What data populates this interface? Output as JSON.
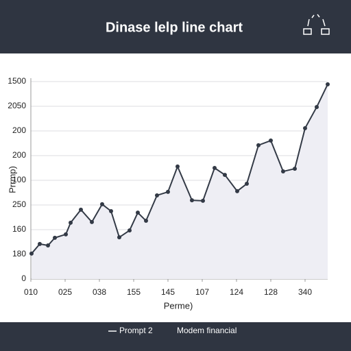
{
  "chart_data": {
    "type": "line",
    "title": "Dinase lelp line chart",
    "x_label": "Perme)",
    "y_label": "Prrmp)",
    "caption": "Modem financial",
    "xlim": [
      0,
      8.66
    ],
    "ylim": [
      0,
      8
    ],
    "xticks": [
      {
        "value": 0,
        "label": "010"
      },
      {
        "value": 1,
        "label": "025"
      },
      {
        "value": 2,
        "label": "038"
      },
      {
        "value": 3,
        "label": "155"
      },
      {
        "value": 4,
        "label": "145"
      },
      {
        "value": 5,
        "label": "107"
      },
      {
        "value": 6,
        "label": "124"
      },
      {
        "value": 7,
        "label": "128"
      },
      {
        "value": 8,
        "label": "340"
      }
    ],
    "yticks": [
      {
        "value": 0,
        "label": "0"
      },
      {
        "value": 1,
        "label": "180"
      },
      {
        "value": 2,
        "label": "160"
      },
      {
        "value": 3,
        "label": "250"
      },
      {
        "value": 4,
        "label": "100"
      },
      {
        "value": 5,
        "label": "200"
      },
      {
        "value": 6,
        "label": "200"
      },
      {
        "value": 7,
        "label": "2050"
      },
      {
        "value": 8,
        "label": "1500"
      }
    ],
    "grid": true,
    "x": [
      0.02,
      0.26,
      0.5,
      0.7,
      1.02,
      1.16,
      1.46,
      1.78,
      2.08,
      2.34,
      2.58,
      2.88,
      3.12,
      3.36,
      3.68,
      4.0,
      4.28,
      4.7,
      5.02,
      5.36,
      5.66,
      6.02,
      6.3,
      6.64,
      7.0,
      7.36,
      7.7,
      8.0,
      8.34,
      8.66
    ],
    "series": [
      {
        "name": "Prompt 2",
        "color": "#333a46",
        "fill": "#eeeef4",
        "values": [
          1.03,
          1.42,
          1.36,
          1.67,
          1.81,
          2.28,
          2.81,
          2.31,
          3.03,
          2.75,
          1.69,
          1.97,
          2.69,
          2.36,
          3.39,
          3.53,
          4.56,
          3.19,
          3.17,
          4.5,
          4.22,
          3.56,
          3.86,
          5.42,
          5.61,
          4.36,
          4.47,
          6.11,
          6.97,
          7.89
        ]
      }
    ]
  }
}
